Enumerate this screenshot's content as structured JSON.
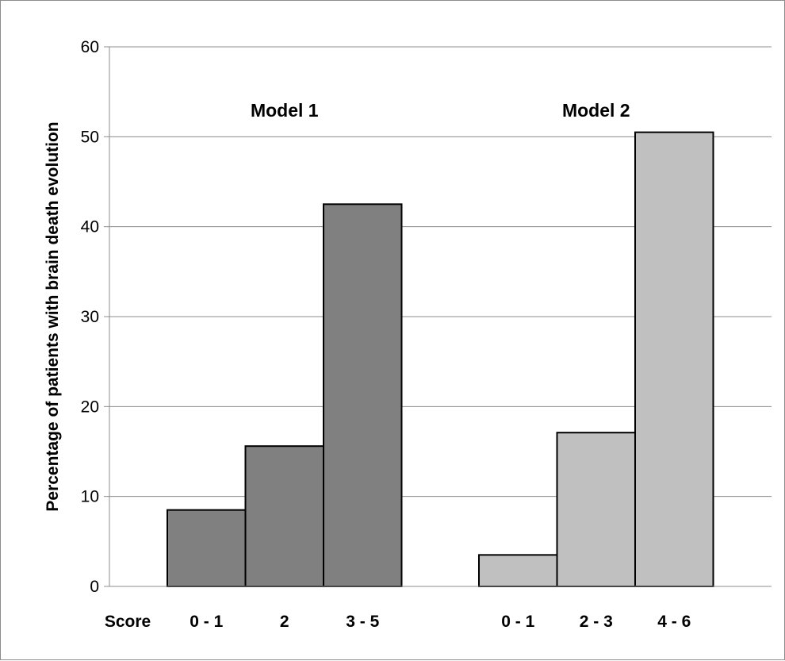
{
  "chart_data": {
    "type": "bar",
    "ylabel": "Percentage of patients with brain death evolution",
    "xlabel": "Score",
    "ylim": [
      0,
      60
    ],
    "yticks": [
      0,
      10,
      20,
      30,
      40,
      50,
      60
    ],
    "grid": true,
    "legend": "none",
    "groups": [
      {
        "name": "Model 1",
        "color": "#808080",
        "categories": [
          "0 - 1",
          "2",
          "3 - 5"
        ],
        "values": [
          8.5,
          15.6,
          42.5
        ]
      },
      {
        "name": "Model 2",
        "color": "#c0c0c0",
        "categories": [
          "0 - 1",
          "2 - 3",
          "4 - 6"
        ],
        "values": [
          3.5,
          17.1,
          50.5
        ]
      }
    ]
  }
}
